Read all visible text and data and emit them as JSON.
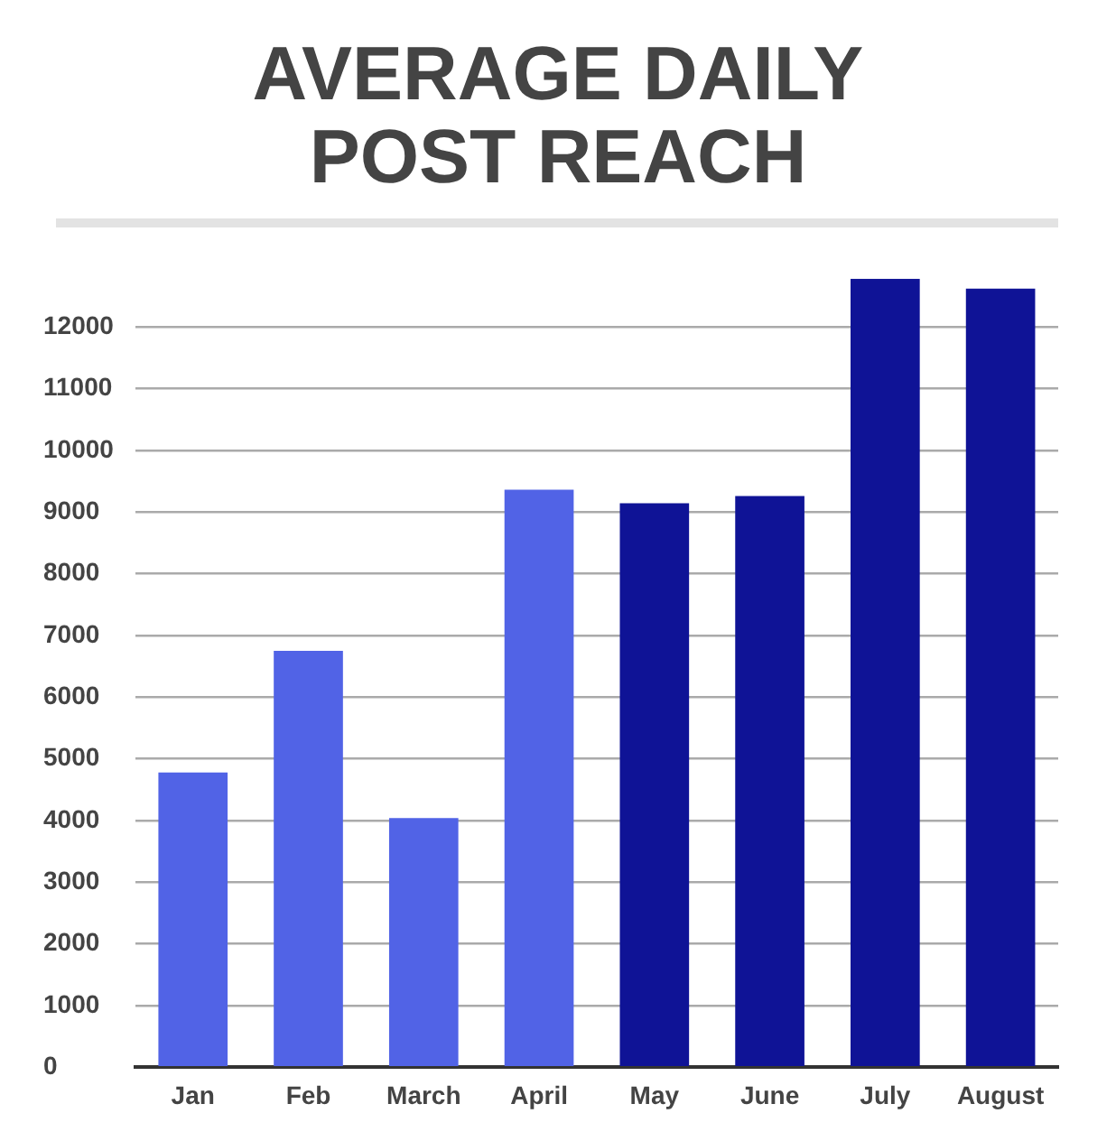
{
  "chart_data": {
    "type": "bar",
    "title": "AVERAGE DAILY POST REACH",
    "categories": [
      "Jan",
      "Feb",
      "March",
      "April",
      "May",
      "June",
      "July",
      "August"
    ],
    "values": [
      4780,
      6750,
      4040,
      9360,
      9140,
      9260,
      12780,
      12620
    ],
    "colors": [
      "#5163e6",
      "#5163e6",
      "#5163e6",
      "#5163e6",
      "#0f1396",
      "#0f1396",
      "#0f1396",
      "#0f1396"
    ],
    "ylim": [
      0,
      12780
    ],
    "yticks": [
      0,
      1000,
      2000,
      3000,
      4000,
      5000,
      6000,
      7000,
      8000,
      9000,
      10000,
      11000,
      12000
    ],
    "grid": "y",
    "legend": false
  }
}
